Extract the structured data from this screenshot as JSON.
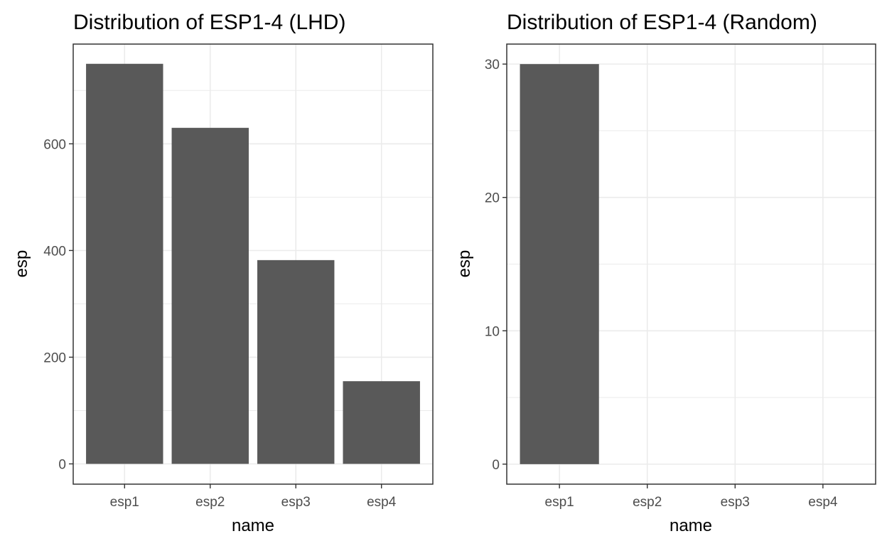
{
  "chart_data": [
    {
      "type": "bar",
      "title": "Distribution of ESP1-4 (LHD)",
      "xlabel": "name",
      "ylabel": "esp",
      "categories": [
        "esp1",
        "esp2",
        "esp3",
        "esp4"
      ],
      "values": [
        750,
        630,
        382,
        155
      ],
      "ylim": [
        -38,
        787
      ],
      "yticks": [
        0,
        200,
        400,
        600
      ],
      "yticks_labels": [
        "0",
        "200",
        "400",
        "600"
      ],
      "grid": true,
      "bar_color": "#595959",
      "grid_color": "#ebebeb",
      "panel_border_color": "#333333"
    },
    {
      "type": "bar",
      "title": "Distribution of ESP1-4 (Random)",
      "xlabel": "name",
      "ylabel": "esp",
      "categories": [
        "esp1",
        "esp2",
        "esp3",
        "esp4"
      ],
      "values": [
        30,
        0,
        0,
        0
      ],
      "ylim": [
        -1.5,
        31.5
      ],
      "yticks": [
        0,
        10,
        20,
        30
      ],
      "yticks_labels": [
        "0",
        "10",
        "20",
        "30"
      ],
      "grid": true,
      "bar_color": "#595959",
      "grid_color": "#ebebeb",
      "panel_border_color": "#333333"
    }
  ]
}
